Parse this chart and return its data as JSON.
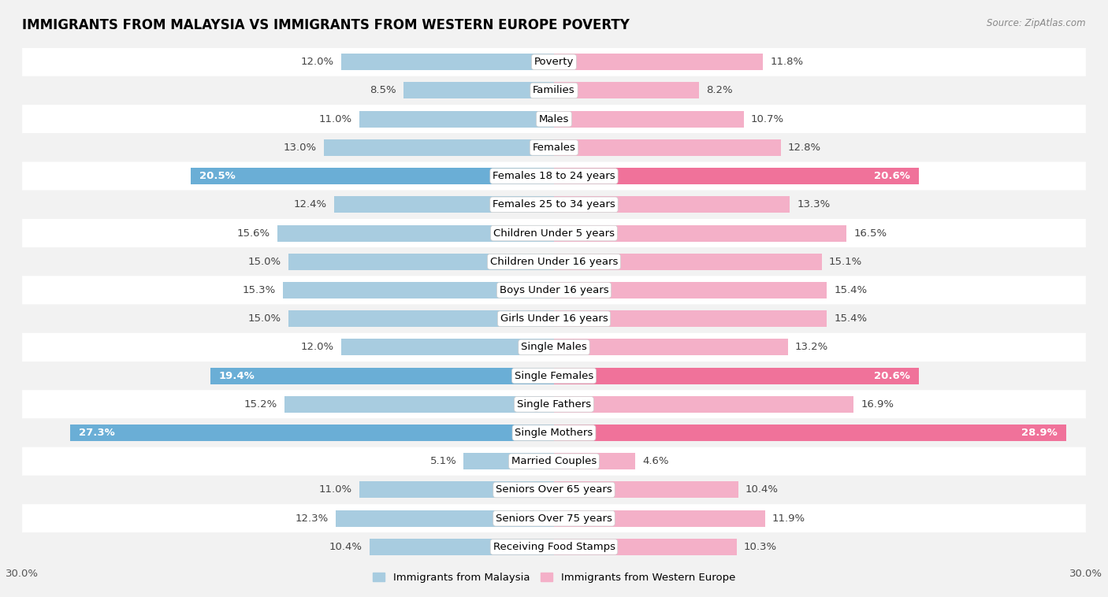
{
  "title": "IMMIGRANTS FROM MALAYSIA VS IMMIGRANTS FROM WESTERN EUROPE POVERTY",
  "source": "Source: ZipAtlas.com",
  "categories": [
    "Poverty",
    "Families",
    "Males",
    "Females",
    "Females 18 to 24 years",
    "Females 25 to 34 years",
    "Children Under 5 years",
    "Children Under 16 years",
    "Boys Under 16 years",
    "Girls Under 16 years",
    "Single Males",
    "Single Females",
    "Single Fathers",
    "Single Mothers",
    "Married Couples",
    "Seniors Over 65 years",
    "Seniors Over 75 years",
    "Receiving Food Stamps"
  ],
  "malaysia_values": [
    12.0,
    8.5,
    11.0,
    13.0,
    20.5,
    12.4,
    15.6,
    15.0,
    15.3,
    15.0,
    12.0,
    19.4,
    15.2,
    27.3,
    5.1,
    11.0,
    12.3,
    10.4
  ],
  "western_europe_values": [
    11.8,
    8.2,
    10.7,
    12.8,
    20.6,
    13.3,
    16.5,
    15.1,
    15.4,
    15.4,
    13.2,
    20.6,
    16.9,
    28.9,
    4.6,
    10.4,
    11.9,
    10.3
  ],
  "malaysia_color_normal": "#a8cce0",
  "malaysia_color_highlight": "#6aaed6",
  "western_europe_color_normal": "#f4b0c8",
  "western_europe_color_highlight": "#f0729a",
  "highlight_rows": [
    4,
    11,
    13
  ],
  "background_color": "#f2f2f2",
  "row_white_color": "#ffffff",
  "xlim": 30.0,
  "bar_height": 0.58,
  "label_fontsize": 9.5,
  "cat_fontsize": 9.5,
  "title_fontsize": 12,
  "legend_label_malaysia": "Immigrants from Malaysia",
  "legend_label_western_europe": "Immigrants from Western Europe"
}
